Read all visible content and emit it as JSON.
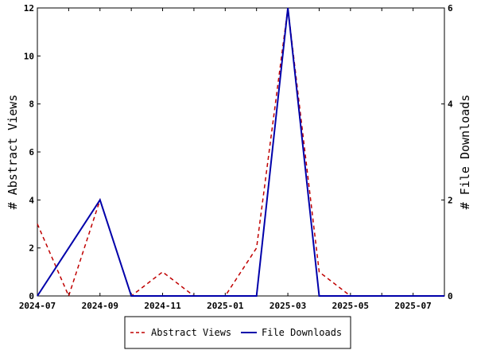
{
  "chart_data": {
    "type": "line",
    "x": [
      "2024-07",
      "2024-08",
      "2024-09",
      "2024-10",
      "2024-11",
      "2024-12",
      "2025-01",
      "2025-02",
      "2025-03",
      "2025-04",
      "2025-05",
      "2025-06",
      "2025-07",
      "2025-08"
    ],
    "x_tick_labels": [
      "2024-07",
      "2024-09",
      "2024-11",
      "2025-01",
      "2025-03",
      "2025-05",
      "2025-07"
    ],
    "ylabel_left": "# Abstract Views",
    "ylabel_right": "# File Downloads",
    "ylim_left": [
      0,
      12
    ],
    "ylim_right": [
      0,
      6
    ],
    "y_ticks_left": [
      "0",
      "2",
      "4",
      "6",
      "8",
      "10",
      "12"
    ],
    "y_ticks_right": [
      "0",
      "2",
      "4",
      "6"
    ],
    "grid": false,
    "legend_position": "bottom",
    "series": [
      {
        "name": "Abstract Views",
        "axis": "left",
        "color": "#c00000",
        "style": "dashed",
        "values": [
          3,
          0,
          4,
          0,
          1,
          0,
          0,
          2,
          12,
          1,
          0,
          0,
          0,
          0
        ]
      },
      {
        "name": "File Downloads",
        "axis": "right",
        "color": "#0000aa",
        "style": "solid",
        "values": [
          0,
          1,
          2,
          0,
          0,
          0,
          0,
          0,
          6,
          0,
          0,
          0,
          0,
          0
        ]
      }
    ]
  }
}
